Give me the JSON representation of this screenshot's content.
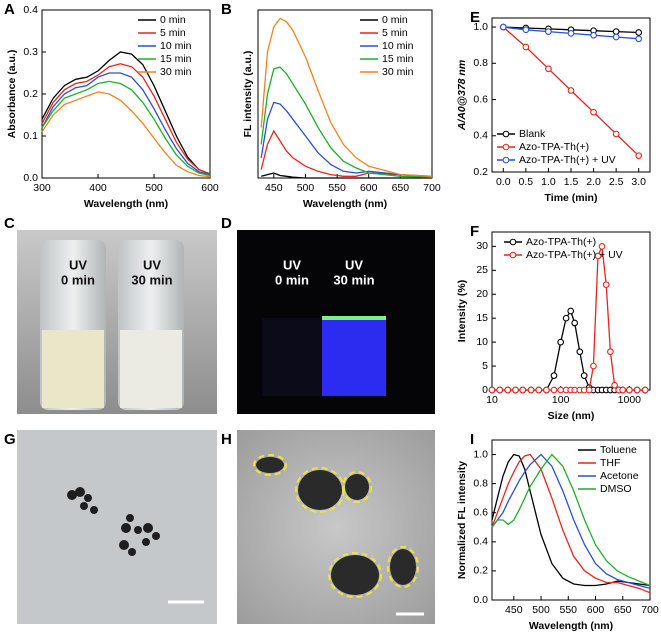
{
  "chart_data": [
    {
      "type": "line",
      "panel": "A",
      "x_label": "Wavelength (nm)",
      "y_label": "Absorbance (a.u.)",
      "x": [
        300,
        320,
        340,
        360,
        380,
        400,
        420,
        440,
        460,
        480,
        500,
        520,
        540,
        560,
        580,
        600
      ],
      "xlim": [
        300,
        600
      ],
      "xticks": [
        300,
        400,
        500,
        600
      ],
      "ylim": [
        0,
        0.4
      ],
      "yticks": [
        {
          "value": 0,
          "label": "0.0"
        },
        0.1,
        0.2,
        0.3,
        0.4
      ],
      "legend": "upper right",
      "series": [
        {
          "name": "0 min",
          "color": "#000000",
          "values": [
            0.14,
            0.19,
            0.22,
            0.235,
            0.24,
            0.255,
            0.28,
            0.3,
            0.295,
            0.27,
            0.22,
            0.16,
            0.1,
            0.05,
            0.02,
            0.01
          ]
        },
        {
          "name": "5 min",
          "color": "#e8251f",
          "values": [
            0.13,
            0.18,
            0.21,
            0.225,
            0.23,
            0.245,
            0.265,
            0.272,
            0.265,
            0.24,
            0.195,
            0.14,
            0.085,
            0.045,
            0.02,
            0.01
          ]
        },
        {
          "name": "10 min",
          "color": "#2a4fd8",
          "values": [
            0.12,
            0.17,
            0.2,
            0.215,
            0.22,
            0.24,
            0.25,
            0.25,
            0.24,
            0.21,
            0.165,
            0.115,
            0.07,
            0.035,
            0.015,
            0.008
          ]
        },
        {
          "name": "15 min",
          "color": "#1fae2a",
          "values": [
            0.12,
            0.16,
            0.19,
            0.2,
            0.21,
            0.225,
            0.23,
            0.225,
            0.21,
            0.18,
            0.14,
            0.095,
            0.055,
            0.028,
            0.012,
            0.006
          ]
        },
        {
          "name": "30 min",
          "color": "#f5821f",
          "values": [
            0.11,
            0.15,
            0.175,
            0.185,
            0.195,
            0.205,
            0.2,
            0.185,
            0.16,
            0.13,
            0.095,
            0.06,
            0.03,
            0.015,
            0.006,
            0.003
          ]
        }
      ]
    },
    {
      "type": "line",
      "panel": "B",
      "x_label": "Wavelength (nm)",
      "y_label": "FL intensity (a.u.)",
      "x": [
        430,
        440,
        450,
        460,
        470,
        480,
        500,
        520,
        540,
        560,
        580,
        600,
        650,
        700
      ],
      "xlim": [
        425,
        700
      ],
      "xticks": [
        450,
        500,
        550,
        600,
        650,
        700
      ],
      "ylim": [
        0,
        1
      ],
      "legend": "upper right",
      "series": [
        {
          "name": "0 min",
          "color": "#000000",
          "values": [
            0.01,
            0.02,
            0.03,
            0.015,
            0.01,
            0.005,
            0,
            0,
            0,
            0,
            0,
            0,
            0,
            0
          ]
        },
        {
          "name": "5 min",
          "color": "#e8251f",
          "values": [
            0.05,
            0.2,
            0.28,
            0.22,
            0.16,
            0.12,
            0.07,
            0.04,
            0.02,
            0.01,
            0.01,
            0.03,
            0.02,
            0.01
          ]
        },
        {
          "name": "10 min",
          "color": "#2a4fd8",
          "values": [
            0.12,
            0.35,
            0.45,
            0.44,
            0.4,
            0.35,
            0.25,
            0.15,
            0.08,
            0.04,
            0.03,
            0.04,
            0.02,
            0.005
          ]
        },
        {
          "name": "15 min",
          "color": "#1fae2a",
          "values": [
            0.2,
            0.5,
            0.65,
            0.66,
            0.62,
            0.56,
            0.44,
            0.3,
            0.18,
            0.1,
            0.06,
            0.03,
            0.01,
            0.005
          ]
        },
        {
          "name": "30 min",
          "color": "#f5821f",
          "values": [
            0.3,
            0.75,
            0.9,
            0.95,
            0.93,
            0.88,
            0.72,
            0.52,
            0.33,
            0.2,
            0.12,
            0.07,
            0.02,
            0.01
          ]
        }
      ]
    },
    {
      "type": "line",
      "panel": "E",
      "x_label": "Time (min)",
      "y_label": "A/A0@378 nm",
      "markers": true,
      "x": [
        0,
        0.5,
        1,
        1.5,
        2,
        2.5,
        3
      ],
      "xlim": [
        -0.25,
        3.25
      ],
      "xticks": [
        {
          "value": 0,
          "label": "0.0"
        },
        0.5,
        {
          "value": 1,
          "label": "1.0"
        },
        1.5,
        {
          "value": 2,
          "label": "2.0"
        },
        2.5,
        {
          "value": 3,
          "label": "3.0"
        }
      ],
      "ylim": [
        0.2,
        1.05
      ],
      "yticks": [
        0.2,
        0.4,
        0.6,
        0.8,
        {
          "value": 1,
          "label": "1.0"
        }
      ],
      "legend": "lower left",
      "series": [
        {
          "name": "Blank",
          "color": "#000000",
          "values": [
            1,
            0.995,
            0.99,
            0.985,
            0.98,
            0.975,
            0.97
          ]
        },
        {
          "name": "Azo-TPA-Th(+)",
          "color": "#e8251f",
          "values": [
            1,
            0.89,
            0.77,
            0.65,
            0.53,
            0.41,
            0.29
          ]
        },
        {
          "name": "Azo-TPA-Th(+) + UV",
          "color": "#2a4fd8",
          "values": [
            1,
            0.985,
            0.975,
            0.965,
            0.955,
            0.945,
            0.935
          ]
        }
      ]
    },
    {
      "type": "line",
      "panel": "F",
      "x_label": "Size (nm)",
      "y_label": "Intensity (%)",
      "markers": true,
      "xscale": "log",
      "x": [
        10,
        13,
        17,
        22,
        28,
        37,
        48,
        62,
        80,
        100,
        120,
        140,
        160,
        190,
        220,
        260,
        300,
        350,
        400,
        460,
        530,
        610,
        700,
        800,
        1000,
        1300,
        1700
      ],
      "xlim": [
        10,
        2000
      ],
      "xticks": [
        10,
        100,
        1000
      ],
      "ylim": [
        0,
        33
      ],
      "yticks": [
        0,
        5,
        10,
        15,
        20,
        25,
        30
      ],
      "legend": "upper left",
      "series": [
        {
          "name": "Azo-TPA-Th(+)",
          "color": "#000000",
          "values": [
            0,
            0,
            0,
            0,
            0,
            0,
            0,
            0,
            3,
            10,
            15,
            16.5,
            14,
            8,
            3,
            0.5,
            0,
            0,
            0,
            0,
            0,
            0,
            0,
            0,
            0,
            0,
            0
          ]
        },
        {
          "name": "Azo-TPA-Th(+) + UV",
          "color": "#e8251f",
          "values": [
            0,
            0,
            0,
            0,
            0,
            0,
            0,
            0,
            0,
            0,
            0,
            0,
            0,
            0,
            0,
            0,
            5,
            28,
            30,
            22,
            8,
            1,
            0,
            0,
            0,
            0,
            0
          ]
        }
      ]
    },
    {
      "type": "line",
      "panel": "I",
      "x_label": "Wavelength (nm)",
      "y_label": "Normalized FL intensity",
      "x": [
        410,
        420,
        430,
        440,
        450,
        460,
        470,
        480,
        500,
        520,
        540,
        560,
        580,
        600,
        620,
        640,
        660,
        680,
        700
      ],
      "xlim": [
        410,
        700
      ],
      "xticks": [
        450,
        500,
        550,
        600,
        650,
        700
      ],
      "ylim": [
        0,
        1.1
      ],
      "yticks": [
        {
          "value": 0,
          "label": "0.0"
        },
        0.2,
        0.4,
        0.6,
        0.8,
        {
          "value": 1,
          "label": "1.0"
        }
      ],
      "legend": "upper right",
      "series": [
        {
          "name": "Toluene",
          "color": "#000000",
          "values": [
            0.55,
            0.7,
            0.85,
            0.95,
            1,
            0.99,
            0.9,
            0.75,
            0.45,
            0.25,
            0.15,
            0.11,
            0.1,
            0.1,
            0.11,
            0.13,
            0.12,
            0.11,
            0.1
          ]
        },
        {
          "name": "THF",
          "color": "#e8251f",
          "values": [
            0.5,
            0.6,
            0.7,
            0.8,
            0.88,
            0.95,
            0.99,
            1,
            0.9,
            0.7,
            0.48,
            0.3,
            0.2,
            0.15,
            0.12,
            0.12,
            0.1,
            0.08,
            0.05
          ]
        },
        {
          "name": "Acetone",
          "color": "#2a4fd8",
          "values": [
            0.5,
            0.55,
            0.6,
            0.68,
            0.75,
            0.82,
            0.88,
            0.93,
            1,
            0.92,
            0.75,
            0.55,
            0.38,
            0.25,
            0.18,
            0.14,
            0.12,
            0.1,
            0.08
          ]
        },
        {
          "name": "DMSO",
          "color": "#1fae2a",
          "values": [
            0.5,
            0.55,
            0.55,
            0.52,
            0.55,
            0.62,
            0.7,
            0.78,
            0.9,
            1,
            0.92,
            0.75,
            0.55,
            0.38,
            0.27,
            0.2,
            0.16,
            0.13,
            0.1
          ]
        }
      ]
    }
  ],
  "photos": [
    {
      "panel": "C",
      "labels": [
        [
          "UV",
          "0 min"
        ],
        [
          "UV",
          "30 min"
        ]
      ]
    },
    {
      "panel": "D",
      "labels": [
        [
          "UV",
          "0 min"
        ],
        [
          "UV",
          "30 min"
        ]
      ]
    },
    {
      "panel": "G"
    },
    {
      "panel": "H"
    }
  ]
}
